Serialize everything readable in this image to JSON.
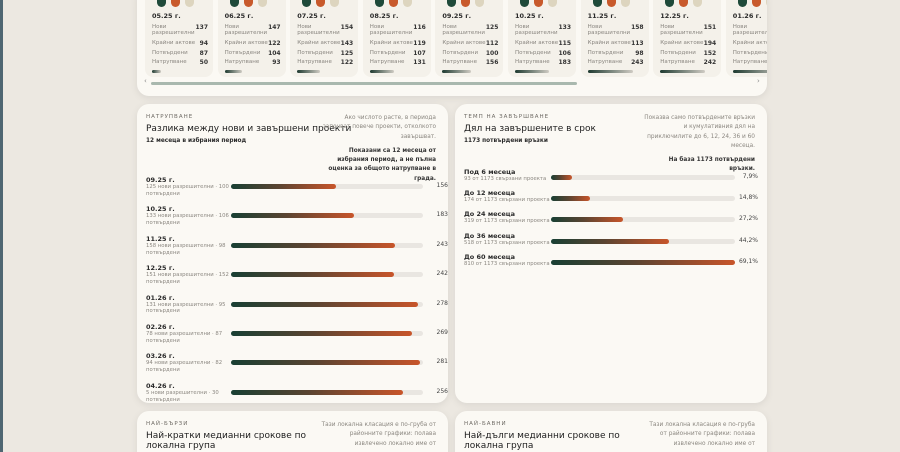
{
  "months": [
    {
      "date": "05.25 г.",
      "new": "137",
      "acts": "94",
      "confirmed": "87",
      "accum": "50",
      "accum_value": 50
    },
    {
      "date": "06.25 г.",
      "new": "147",
      "acts": "122",
      "confirmed": "104",
      "accum": "93",
      "accum_value": 93
    },
    {
      "date": "07.25 г.",
      "new": "154",
      "acts": "143",
      "confirmed": "125",
      "accum": "122",
      "accum_value": 122
    },
    {
      "date": "08.25 г.",
      "new": "116",
      "acts": "119",
      "confirmed": "107",
      "accum": "131",
      "accum_value": 131
    },
    {
      "date": "09.25 г.",
      "new": "125",
      "acts": "112",
      "confirmed": "100",
      "accum": "156",
      "accum_value": 156
    },
    {
      "date": "10.25 г.",
      "new": "133",
      "acts": "115",
      "confirmed": "106",
      "accum": "183",
      "accum_value": 183
    },
    {
      "date": "11.25 г.",
      "new": "158",
      "acts": "113",
      "confirmed": "98",
      "accum": "243",
      "accum_value": 243
    },
    {
      "date": "12.25 г.",
      "new": "151",
      "acts": "194",
      "confirmed": "152",
      "accum": "242",
      "accum_value": 242
    },
    {
      "date": "01.26 г.",
      "accum_value": 278
    }
  ],
  "labels": {
    "new": "Нови разрешителни",
    "acts": "Крайни актове",
    "confirmed": "Потвърдени",
    "accum": "Натрупване"
  },
  "colors": {
    "green": "#1f4a3a",
    "orange": "#c85a2c",
    "beige": "#ddd5bf"
  },
  "accum_panel": {
    "kicker": "НАТРУПВАНЕ",
    "title": "Разлика между нови и завършени проекти",
    "subtitle": "12 месеца в избрания период",
    "note": "Ако числото расте, в периода започват повече проекти, отколкото завършват.",
    "note_bold": "Показани са 12 месеца от избрания период, а не пълна оценка за общото натрупване в града.",
    "max": 285,
    "rows": [
      {
        "label": "09.25 г.",
        "detail": "125 нови разрешителни · 100 потвърдени",
        "value": 156
      },
      {
        "label": "10.25 г.",
        "detail": "133 нови разрешителни · 106 потвърдени",
        "value": 183
      },
      {
        "label": "11.25 г.",
        "detail": "158 нови разрешителни · 98 потвърдени",
        "value": 243
      },
      {
        "label": "12.25 г.",
        "detail": "151 нови разрешителни · 152 потвърдени",
        "value": 242
      },
      {
        "label": "01.26 г.",
        "detail": "131 нови разрешителни · 95 потвърдени",
        "value": 278
      },
      {
        "label": "02.26 г.",
        "detail": "78 нови разрешителни · 87 потвърдени",
        "value": 269
      },
      {
        "label": "03.26 г.",
        "detail": "94 нови разрешителни · 82 потвърдени",
        "value": 281
      },
      {
        "label": "04.26 г.",
        "detail": "5 нови разрешителни · 30 потвърдени",
        "value": 256
      }
    ]
  },
  "pace_panel": {
    "kicker": "ТЕМП НА ЗАВЪРШВАНЕ",
    "title": "Дял на завършените в срок",
    "subtitle": "1173 потвърдени връзки",
    "note": "Показва само потвърдените връзки и кумулативния дял на приключилите до 6, 12, 24, 36 и 60 месеца.",
    "note_bold": "На база 1173 потвърдени връзки.",
    "rows": [
      {
        "label": "Под 6 месеца",
        "detail": "93 от 1173 свързани проекта",
        "pct": 7.9,
        "text": "7,9%"
      },
      {
        "label": "До 12 месеца",
        "detail": "174 от 1173 свързани проекта",
        "pct": 14.8,
        "text": "14,8%"
      },
      {
        "label": "До 24 месеца",
        "detail": "319 от 1173 свързани проекта",
        "pct": 27.2,
        "text": "27,2%"
      },
      {
        "label": "До 36 месеца",
        "detail": "518 от 1173 свързани проекта",
        "pct": 44.2,
        "text": "44,2%"
      },
      {
        "label": "До 60 месеца",
        "detail": "810 от 1173 свързани проекта",
        "pct": 69.1,
        "text": "69,1%"
      }
    ]
  },
  "fastest": {
    "kicker": "НАЙ-БЪРЗИ",
    "title": "Най-кратки медианни срокове по локална група",
    "note": "Тази локална класация е по-груба от районните графики: полава извлечено локално име от"
  },
  "slowest": {
    "kicker": "НАЙ-БАВНИ",
    "title": "Най-дълги медианни срокове по локална група",
    "note": "Тази локална класация е по-груба от районните графики: полава извлечено локално име от"
  }
}
